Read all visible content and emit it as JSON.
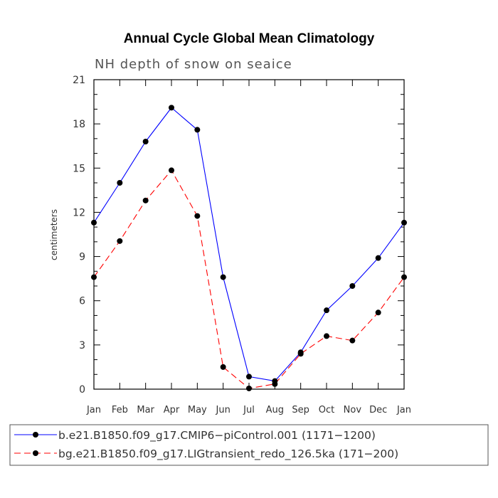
{
  "chart_data": {
    "type": "line",
    "title": "Annual Cycle Global Mean Climatology",
    "subtitle": "NH depth of snow on seaice",
    "xlabel": "",
    "ylabel": "centimeters",
    "ylim": [
      0,
      21
    ],
    "yticks": [
      0,
      3,
      6,
      9,
      12,
      15,
      18,
      21
    ],
    "categories": [
      "Jan",
      "Feb",
      "Mar",
      "Apr",
      "May",
      "Jun",
      "Jul",
      "Aug",
      "Sep",
      "Oct",
      "Nov",
      "Dec",
      "Jan"
    ],
    "series": [
      {
        "name": "b.e21.B1850.f09_g17.CMIP6−piControl.001 (1171−1200)",
        "color": "#0000ff",
        "dash": "solid",
        "values": [
          11.3,
          14.0,
          16.8,
          19.1,
          17.6,
          7.6,
          0.85,
          0.55,
          2.5,
          5.35,
          7.0,
          8.9,
          11.3
        ]
      },
      {
        "name": "bg.e21.B1850.f09_g17.LIGtransient_redo_126.5ka (171−200)",
        "color": "#ff0000",
        "dash": "dashed",
        "values": [
          7.6,
          10.05,
          12.8,
          14.85,
          11.75,
          1.5,
          0.05,
          0.35,
          2.4,
          3.6,
          3.3,
          5.2,
          7.6
        ]
      }
    ],
    "marker": "filled-circle",
    "marker_color": "#000000",
    "legend_position": "bottom"
  }
}
